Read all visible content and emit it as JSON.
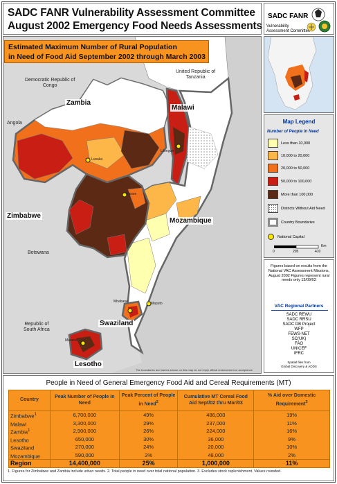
{
  "header": {
    "title_line1": "SADC FANR Vulnerability Assessment Committee",
    "title_line2": "August 2002 Emergency Food Needs Assessments"
  },
  "logo": {
    "org": "SADC FANR",
    "sub_line1": "Vulnerability",
    "sub_line2": "Assessment Committee"
  },
  "map": {
    "title_line1": "Estimated Maximum Number of Rural Population",
    "title_line2": "in Need of Food Aid September 2002 through March 2003",
    "neighbours": {
      "drc_line1": "Democratic Republic of",
      "drc_line2": "Congo",
      "tanzania_line1": "United Republic of",
      "tanzania_line2": "Tanzania",
      "angola": "Angola",
      "botswana": "Botswana",
      "south_africa_line1": "Republic of",
      "south_africa_line2": "South Africa"
    },
    "countries": {
      "zambia": "Zambia",
      "malawi": "Malawi",
      "zimbabwe": "Zimbabwe",
      "mozambique": "Mozambique",
      "swaziland": "Swaziland",
      "lesotho": "Lesotho"
    },
    "capitals": {
      "lusaka": "Lusaka",
      "lilongwe": "Lilongwe",
      "harare": "Harare",
      "maputo": "Maputo",
      "mbabane": "Mbabane",
      "maseru": "Maseru"
    },
    "disclaimer": "The boundaries and names shown on this map do not imply official endorsement or acceptance"
  },
  "legend": {
    "title": "Map Legend",
    "subtitle": "Number of People in Need",
    "items": [
      {
        "label": "Less than 10,000",
        "color": "#ffffb0"
      },
      {
        "label": "10,000 to 20,000",
        "color": "#fdb648"
      },
      {
        "label": "20,000 to 50,000",
        "color": "#f0701b"
      },
      {
        "label": "50,000 to 100,000",
        "color": "#c81e14"
      },
      {
        "label": "More than 100,000",
        "color": "#5c2a14"
      },
      {
        "label": "Districts Without Aid Need",
        "color": "#ffffff"
      },
      {
        "label": "Country Boundaries",
        "color": "#8c8c8c"
      }
    ],
    "capital_label": "National Capital",
    "scale": {
      "ticks": [
        "0",
        "205",
        "410"
      ],
      "unit": "Km"
    }
  },
  "notes": {
    "figures_text": "Figures based on results from the National VAC Assessment Missions, August 2002 Figures represent rural needs only 13/09/02",
    "partners_title": "VAC Regional Partners",
    "partners": [
      "SADC REWU",
      "SADC RRSU",
      "SADC DB Project",
      "WFP",
      "FEWS-NET",
      "SC(UK)",
      "FAO",
      "UNICEF",
      "IFRC"
    ],
    "spatial_line1": "Spatial files from",
    "spatial_line2": "Global Discovery & ADDS"
  },
  "table": {
    "title": "People in Need of General Emergency Food Aid and Cereal Requirements (MT)",
    "headers": {
      "country": "Country",
      "peak_number": "Peak Number of People in Need",
      "peak_percent": "Peak Percent of People in Need",
      "peak_percent_sup": "2",
      "cereal": "Cumulative MT Cereal Food Aid Sept/02 thru Mar/03",
      "aid_domestic": "% Aid over Domestic Requirement",
      "aid_domestic_sup": "3"
    },
    "rows": [
      {
        "country": "Zimbabwe",
        "sup": "1",
        "peak_number": "6,700,000",
        "peak_percent": "49%",
        "cereal": "486,000",
        "aid_domestic": "19%"
      },
      {
        "country": "Malawi",
        "sup": "",
        "peak_number": "3,300,000",
        "peak_percent": "29%",
        "cereal": "237,000",
        "aid_domestic": "11%"
      },
      {
        "country": "Zambia",
        "sup": "1",
        "peak_number": "2,900,000",
        "peak_percent": "26%",
        "cereal": "224,000",
        "aid_domestic": "16%"
      },
      {
        "country": "Lesotho",
        "sup": "",
        "peak_number": "650,000",
        "peak_percent": "30%",
        "cereal": "36,000",
        "aid_domestic": "9%"
      },
      {
        "country": "Swaziland",
        "sup": "",
        "peak_number": "270,000",
        "peak_percent": "24%",
        "cereal": "20,000",
        "aid_domestic": "10%"
      },
      {
        "country": "Mozambique",
        "sup": "",
        "peak_number": "590,000",
        "peak_percent": "3%",
        "cereal": "48,000",
        "aid_domestic": "2%"
      }
    ],
    "total": {
      "country": "Region",
      "peak_number": "14,400,000",
      "peak_percent": "25%",
      "cereal": "1,000,000",
      "aid_domestic": "11%"
    },
    "footnote": "1. Figures for Zimbabwe and Zambia include urban needs. 2. Total people in need over total national population. 3. Excludes stock replenishment. Values rounded."
  }
}
